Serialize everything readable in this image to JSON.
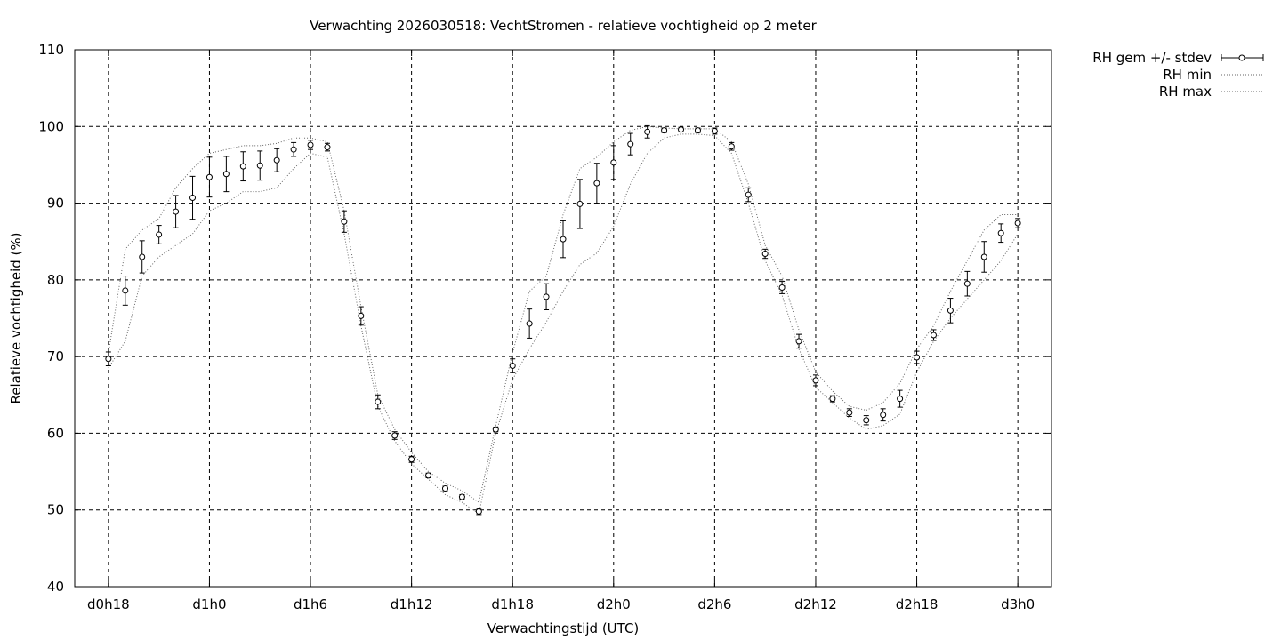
{
  "chart_data": {
    "type": "line",
    "title": "Verwachting 2026030518: VechtStromen - relatieve vochtigheid op 2 meter",
    "xlabel": "Verwachtingstijd (UTC)",
    "ylabel": "Relatieve vochtigheid (%)",
    "ylim": [
      40,
      110
    ],
    "yticks": [
      40,
      50,
      60,
      70,
      80,
      90,
      100,
      110
    ],
    "xticks": [
      {
        "label": "d0h18",
        "hour": 18
      },
      {
        "label": "d1h0",
        "hour": 24
      },
      {
        "label": "d1h6",
        "hour": 30
      },
      {
        "label": "d1h12",
        "hour": 36
      },
      {
        "label": "d1h18",
        "hour": 42
      },
      {
        "label": "d2h0",
        "hour": 48
      },
      {
        "label": "d2h6",
        "hour": 54
      },
      {
        "label": "d2h12",
        "hour": 60
      },
      {
        "label": "d2h18",
        "hour": 66
      },
      {
        "label": "d3h0",
        "hour": 72
      }
    ],
    "xlim_hours": [
      16,
      74
    ],
    "grid": true,
    "legend_position": "outside-top-right",
    "series": [
      {
        "name": "RH gem +/- stdev",
        "style": "errorbars",
        "hours": [
          18,
          19,
          20,
          21,
          22,
          23,
          24,
          25,
          26,
          27,
          28,
          29,
          30,
          31,
          32,
          33,
          34,
          35,
          36,
          37,
          38,
          39,
          40,
          41,
          42,
          43,
          44,
          45,
          46,
          47,
          48,
          49,
          50,
          51,
          52,
          53,
          54,
          55,
          56,
          57,
          58,
          59,
          60,
          61,
          62,
          63,
          64,
          65,
          66,
          67,
          68,
          69,
          70,
          71,
          72
        ],
        "values": [
          69.7,
          78.6,
          83.0,
          85.9,
          88.9,
          90.7,
          93.4,
          93.8,
          94.8,
          94.9,
          95.6,
          97.0,
          97.6,
          97.3,
          87.6,
          75.3,
          64.1,
          59.7,
          56.6,
          54.5,
          52.8,
          51.7,
          49.8,
          60.5,
          68.8,
          74.3,
          77.8,
          85.3,
          89.9,
          92.6,
          95.3,
          97.7,
          99.3,
          99.5,
          99.6,
          99.5,
          99.4,
          97.4,
          91.1,
          83.4,
          79.0,
          72.0,
          66.9,
          64.5,
          62.7,
          61.7,
          62.4,
          64.5,
          69.9,
          72.8,
          76.0,
          79.5,
          83.0,
          86.1,
          87.4
        ],
        "stdev": [
          0.9,
          1.9,
          2.1,
          1.2,
          2.1,
          2.8,
          2.6,
          2.3,
          1.9,
          1.9,
          1.5,
          0.9,
          0.6,
          0.5,
          1.4,
          1.2,
          0.9,
          0.5,
          0.4,
          0.3,
          0.3,
          0.3,
          0.4,
          0.3,
          0.9,
          1.9,
          1.7,
          2.4,
          3.2,
          2.6,
          2.2,
          1.4,
          0.8,
          0.3,
          0.3,
          0.3,
          0.4,
          0.5,
          0.9,
          0.6,
          0.8,
          0.9,
          0.7,
          0.4,
          0.5,
          0.6,
          0.8,
          1.1,
          0.8,
          0.7,
          1.6,
          1.6,
          2.0,
          1.2,
          0.6
        ],
        "color": "#000000"
      },
      {
        "name": "RH min",
        "style": "dotted",
        "hours": [
          18,
          19,
          20,
          21,
          22,
          23,
          24,
          25,
          26,
          27,
          28,
          29,
          30,
          31,
          32,
          33,
          34,
          35,
          36,
          37,
          38,
          39,
          40,
          41,
          42,
          43,
          44,
          45,
          46,
          47,
          48,
          49,
          50,
          51,
          52,
          53,
          54,
          55,
          56,
          57,
          58,
          59,
          60,
          61,
          62,
          63,
          64,
          65,
          66,
          67,
          68,
          69,
          70,
          71,
          72
        ],
        "values": [
          68.5,
          72.0,
          80.5,
          83.0,
          84.5,
          86.0,
          89.0,
          90.0,
          91.5,
          91.5,
          92.0,
          94.5,
          96.5,
          96.0,
          86.0,
          74.0,
          63.5,
          59.0,
          56.0,
          54.0,
          52.0,
          51.0,
          49.5,
          60.0,
          67.0,
          71.0,
          74.5,
          78.5,
          82.0,
          83.5,
          87.0,
          92.5,
          96.5,
          98.5,
          99.0,
          99.0,
          98.8,
          96.5,
          90.0,
          82.5,
          78.0,
          71.0,
          66.0,
          64.0,
          62.0,
          60.5,
          61.0,
          62.5,
          68.0,
          72.0,
          75.0,
          77.5,
          80.0,
          82.5,
          86.0
        ],
        "color": "#666666"
      },
      {
        "name": "RH max",
        "style": "dotted",
        "hours": [
          18,
          19,
          20,
          21,
          22,
          23,
          24,
          25,
          26,
          27,
          28,
          29,
          30,
          31,
          32,
          33,
          34,
          35,
          36,
          37,
          38,
          39,
          40,
          41,
          42,
          43,
          44,
          45,
          46,
          47,
          48,
          49,
          50,
          51,
          52,
          53,
          54,
          55,
          56,
          57,
          58,
          59,
          60,
          61,
          62,
          63,
          64,
          65,
          66,
          67,
          68,
          69,
          70,
          71,
          72
        ],
        "values": [
          70.5,
          84.0,
          86.5,
          88.0,
          92.0,
          94.5,
          96.5,
          97.0,
          97.5,
          97.5,
          97.8,
          98.5,
          98.5,
          98.0,
          89.0,
          76.5,
          65.0,
          60.5,
          57.5,
          55.0,
          53.5,
          52.5,
          51.0,
          61.0,
          70.5,
          78.5,
          80.5,
          88.5,
          94.5,
          96.0,
          98.0,
          99.5,
          100.0,
          99.8,
          99.7,
          99.7,
          99.7,
          98.0,
          92.5,
          84.5,
          80.5,
          73.5,
          68.0,
          65.5,
          63.5,
          63.0,
          64.0,
          66.5,
          71.0,
          74.0,
          78.5,
          82.5,
          86.5,
          88.5,
          88.5
        ],
        "color": "#666666"
      }
    ]
  }
}
